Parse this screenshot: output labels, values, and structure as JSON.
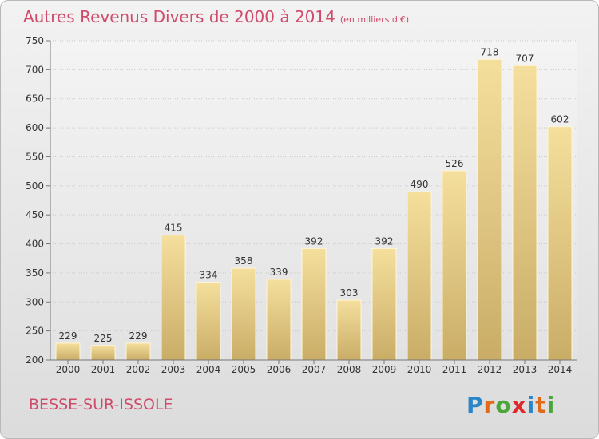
{
  "title": "Autres Revenus Divers de 2000 à 2014",
  "unit": "(en milliers d'€)",
  "commune": "BESSE-SUR-ISSOLE",
  "brand": "Proxiti",
  "colors": {
    "title": "#d04b6b",
    "bar_light": "#f5df9d",
    "bar_dark": "#c9ad67"
  },
  "chart_data": {
    "type": "bar",
    "categories": [
      "2000",
      "2001",
      "2002",
      "2003",
      "2004",
      "2005",
      "2006",
      "2007",
      "2008",
      "2009",
      "2010",
      "2011",
      "2012",
      "2013",
      "2014"
    ],
    "values": [
      229,
      225,
      229,
      415,
      334,
      358,
      339,
      392,
      303,
      392,
      490,
      526,
      718,
      707,
      602
    ],
    "title": "Autres Revenus Divers de 2000 à 2014",
    "xlabel": "",
    "ylabel": "",
    "ylim": [
      200,
      750
    ],
    "yticks": [
      200,
      250,
      300,
      350,
      400,
      450,
      500,
      550,
      600,
      650,
      700,
      750
    ],
    "grid": true
  }
}
